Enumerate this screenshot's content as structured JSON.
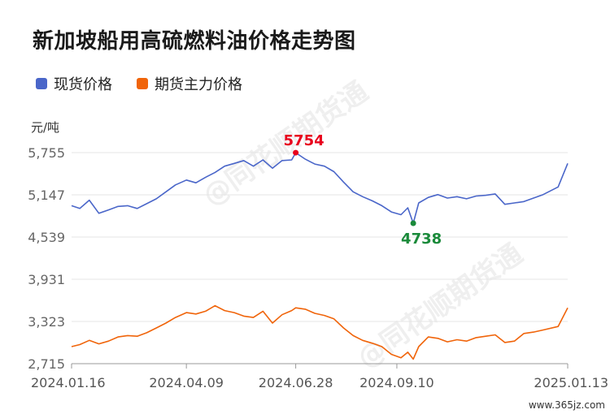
{
  "header": {
    "title": "新加坡船用高硫燃料油价格走势图"
  },
  "legend": [
    {
      "label": "现货价格",
      "color": "#4a66c9"
    },
    {
      "label": "期货主力价格",
      "color": "#f0640a"
    }
  ],
  "unit_label": "元/吨",
  "footer": {
    "text": "www.365jz.com"
  },
  "watermark": {
    "text": "@同花顺期货通"
  },
  "chart_data": {
    "type": "line",
    "title": "新加坡船用高硫燃料油价格走势图",
    "ylabel": "元/吨",
    "ylim": [
      2715,
      5755
    ],
    "yticks": [
      "5,755",
      "5,147",
      "4,539",
      "3,931",
      "3,323",
      "2,715"
    ],
    "xticks": [
      "2024.01.16",
      "2024.04.09",
      "2024.06.28",
      "2024.09.10",
      "2025.01.13"
    ],
    "x_range": [
      "2024.01.16",
      "2025.01.13"
    ],
    "grid": true,
    "legend_position": "top-left",
    "annotations": [
      {
        "label": "5754",
        "series": "现货价格",
        "date": "2024.06.28",
        "value": 5754,
        "color": "#e8001c"
      },
      {
        "label": "4738",
        "series": "现货价格",
        "date": "2024.09.22",
        "value": 4738,
        "color": "#1a8a3a"
      }
    ],
    "series": [
      {
        "name": "现货价格",
        "color": "#4a66c9",
        "points": [
          [
            "2024.01.16",
            4990
          ],
          [
            "2024.01.22",
            4950
          ],
          [
            "2024.01.29",
            5070
          ],
          [
            "2024.02.05",
            4880
          ],
          [
            "2024.02.12",
            4930
          ],
          [
            "2024.02.19",
            4980
          ],
          [
            "2024.02.26",
            4990
          ],
          [
            "2024.03.04",
            4950
          ],
          [
            "2024.03.11",
            5020
          ],
          [
            "2024.03.18",
            5090
          ],
          [
            "2024.03.25",
            5190
          ],
          [
            "2024.04.01",
            5290
          ],
          [
            "2024.04.09",
            5360
          ],
          [
            "2024.04.16",
            5320
          ],
          [
            "2024.04.23",
            5400
          ],
          [
            "2024.04.30",
            5470
          ],
          [
            "2024.05.07",
            5560
          ],
          [
            "2024.05.14",
            5600
          ],
          [
            "2024.05.21",
            5640
          ],
          [
            "2024.05.28",
            5560
          ],
          [
            "2024.06.04",
            5650
          ],
          [
            "2024.06.11",
            5530
          ],
          [
            "2024.06.18",
            5640
          ],
          [
            "2024.06.25",
            5650
          ],
          [
            "2024.06.28",
            5754
          ],
          [
            "2024.07.05",
            5660
          ],
          [
            "2024.07.12",
            5590
          ],
          [
            "2024.07.19",
            5560
          ],
          [
            "2024.07.26",
            5480
          ],
          [
            "2024.08.02",
            5330
          ],
          [
            "2024.08.09",
            5190
          ],
          [
            "2024.08.16",
            5120
          ],
          [
            "2024.08.23",
            5060
          ],
          [
            "2024.08.30",
            4990
          ],
          [
            "2024.09.06",
            4900
          ],
          [
            "2024.09.13",
            4860
          ],
          [
            "2024.09.18",
            4960
          ],
          [
            "2024.09.22",
            4738
          ],
          [
            "2024.09.26",
            5030
          ],
          [
            "2024.10.03",
            5110
          ],
          [
            "2024.10.10",
            5150
          ],
          [
            "2024.10.17",
            5100
          ],
          [
            "2024.10.24",
            5120
          ],
          [
            "2024.10.31",
            5090
          ],
          [
            "2024.11.07",
            5130
          ],
          [
            "2024.11.14",
            5140
          ],
          [
            "2024.11.21",
            5160
          ],
          [
            "2024.11.28",
            5010
          ],
          [
            "2024.12.05",
            5030
          ],
          [
            "2024.12.12",
            5050
          ],
          [
            "2024.12.19",
            5100
          ],
          [
            "2024.12.26",
            5150
          ],
          [
            "2025.01.06",
            5260
          ],
          [
            "2025.01.13",
            5600
          ]
        ]
      },
      {
        "name": "期货主力价格",
        "color": "#f0640a",
        "points": [
          [
            "2024.01.16",
            2960
          ],
          [
            "2024.01.22",
            2990
          ],
          [
            "2024.01.29",
            3050
          ],
          [
            "2024.02.05",
            3000
          ],
          [
            "2024.02.12",
            3040
          ],
          [
            "2024.02.19",
            3100
          ],
          [
            "2024.02.26",
            3120
          ],
          [
            "2024.03.04",
            3110
          ],
          [
            "2024.03.11",
            3160
          ],
          [
            "2024.03.18",
            3230
          ],
          [
            "2024.03.25",
            3300
          ],
          [
            "2024.04.01",
            3380
          ],
          [
            "2024.04.09",
            3450
          ],
          [
            "2024.04.16",
            3430
          ],
          [
            "2024.04.23",
            3470
          ],
          [
            "2024.04.30",
            3550
          ],
          [
            "2024.05.07",
            3480
          ],
          [
            "2024.05.14",
            3450
          ],
          [
            "2024.05.21",
            3400
          ],
          [
            "2024.05.28",
            3380
          ],
          [
            "2024.06.04",
            3470
          ],
          [
            "2024.06.11",
            3300
          ],
          [
            "2024.06.18",
            3420
          ],
          [
            "2024.06.25",
            3480
          ],
          [
            "2024.06.28",
            3520
          ],
          [
            "2024.07.05",
            3500
          ],
          [
            "2024.07.12",
            3440
          ],
          [
            "2024.07.19",
            3410
          ],
          [
            "2024.07.26",
            3360
          ],
          [
            "2024.08.02",
            3230
          ],
          [
            "2024.08.09",
            3120
          ],
          [
            "2024.08.16",
            3050
          ],
          [
            "2024.08.23",
            3010
          ],
          [
            "2024.08.30",
            2960
          ],
          [
            "2024.09.06",
            2850
          ],
          [
            "2024.09.13",
            2800
          ],
          [
            "2024.09.18",
            2880
          ],
          [
            "2024.09.22",
            2780
          ],
          [
            "2024.09.26",
            2960
          ],
          [
            "2024.10.03",
            3100
          ],
          [
            "2024.10.10",
            3080
          ],
          [
            "2024.10.17",
            3030
          ],
          [
            "2024.10.24",
            3060
          ],
          [
            "2024.10.31",
            3040
          ],
          [
            "2024.11.07",
            3090
          ],
          [
            "2024.11.14",
            3110
          ],
          [
            "2024.11.21",
            3130
          ],
          [
            "2024.11.28",
            3020
          ],
          [
            "2024.12.05",
            3040
          ],
          [
            "2024.12.12",
            3150
          ],
          [
            "2024.12.19",
            3170
          ],
          [
            "2024.12.26",
            3200
          ],
          [
            "2025.01.06",
            3250
          ],
          [
            "2025.01.13",
            3520
          ]
        ]
      }
    ]
  }
}
